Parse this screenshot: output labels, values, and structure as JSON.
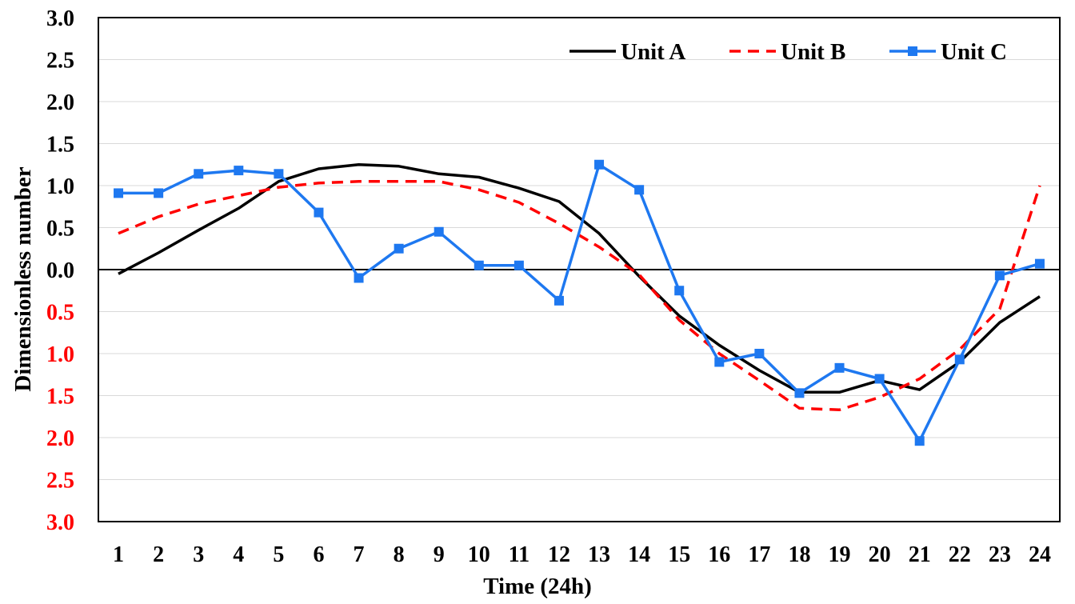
{
  "chart_data": {
    "type": "line",
    "xlabel": "Time (24h)",
    "ylabel": "Dimensionless  number",
    "ylim": [
      -3.0,
      3.0
    ],
    "y_ticks": [
      {
        "value": 3.0,
        "label": "3.0",
        "color": "#000000"
      },
      {
        "value": 2.5,
        "label": "2.5",
        "color": "#000000"
      },
      {
        "value": 2.0,
        "label": "2.0",
        "color": "#000000"
      },
      {
        "value": 1.5,
        "label": "1.5",
        "color": "#000000"
      },
      {
        "value": 1.0,
        "label": "1.0",
        "color": "#000000"
      },
      {
        "value": 0.5,
        "label": "0.5",
        "color": "#000000"
      },
      {
        "value": 0.0,
        "label": "0.0",
        "color": "#000000"
      },
      {
        "value": -0.5,
        "label": "0.5",
        "color": "#ff0000"
      },
      {
        "value": -1.0,
        "label": "1.0",
        "color": "#ff0000"
      },
      {
        "value": -1.5,
        "label": "1.5",
        "color": "#ff0000"
      },
      {
        "value": -2.0,
        "label": "2.0",
        "color": "#ff0000"
      },
      {
        "value": -2.5,
        "label": "2.5",
        "color": "#ff0000"
      },
      {
        "value": -3.0,
        "label": "3.0",
        "color": "#ff0000"
      }
    ],
    "x": [
      "1",
      "2",
      "3",
      "4",
      "5",
      "6",
      "7",
      "8",
      "9",
      "10",
      "11",
      "12",
      "13",
      "14",
      "15",
      "16",
      "17",
      "18",
      "19",
      "20",
      "21",
      "22",
      "23",
      "24"
    ],
    "grid": true,
    "legend_position": "top-right",
    "series": [
      {
        "name": "Unit A",
        "color": "#000000",
        "style": "solid",
        "marker": "none",
        "values": [
          -0.05,
          0.2,
          0.47,
          0.73,
          1.05,
          1.2,
          1.25,
          1.23,
          1.14,
          1.1,
          0.97,
          0.81,
          0.43,
          -0.08,
          -0.55,
          -0.9,
          -1.2,
          -1.46,
          -1.46,
          -1.32,
          -1.43,
          -1.1,
          -0.63,
          -0.32
        ]
      },
      {
        "name": "Unit B",
        "color": "#ff0000",
        "style": "dashed",
        "marker": "none",
        "values": [
          0.43,
          0.63,
          0.78,
          0.88,
          0.98,
          1.03,
          1.05,
          1.05,
          1.05,
          0.95,
          0.8,
          0.55,
          0.27,
          -0.06,
          -0.6,
          -1.0,
          -1.32,
          -1.65,
          -1.67,
          -1.52,
          -1.3,
          -0.95,
          -0.47,
          1.0
        ]
      },
      {
        "name": "Unit C",
        "color": "#1e78f0",
        "style": "solid",
        "marker": "square",
        "values": [
          0.91,
          0.91,
          1.14,
          1.18,
          1.14,
          0.68,
          -0.1,
          0.25,
          0.45,
          0.05,
          0.05,
          -0.37,
          1.25,
          0.95,
          -0.25,
          -1.1,
          -1.0,
          -1.47,
          -1.17,
          -1.3,
          -2.04,
          -1.07,
          -0.07,
          0.07
        ]
      }
    ]
  }
}
